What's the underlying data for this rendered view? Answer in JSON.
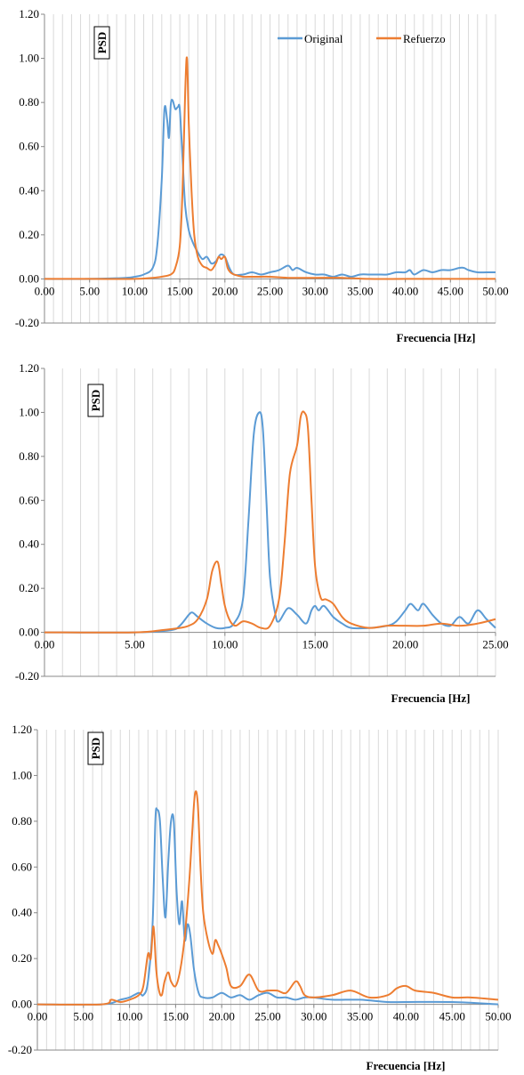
{
  "colors": {
    "original": "#5B9BD5",
    "refuerzo": "#ED7D31",
    "grid": "#d9d9d9",
    "axis": "#888888"
  },
  "legend": {
    "original": "Original",
    "refuerzo": "Refuerzo"
  },
  "chart_data": [
    {
      "type": "line",
      "ylabel": "PSD",
      "xlabel": "Frecuencia [Hz]",
      "xlim": [
        0,
        50
      ],
      "ylim": [
        -0.2,
        1.2
      ],
      "x_ticks": [
        "0.00",
        "5.00",
        "10.00",
        "15.00",
        "20.00",
        "25.00",
        "30.00",
        "35.00",
        "40.00",
        "45.00",
        "50.00"
      ],
      "y_ticks": [
        "1.20",
        "1.00",
        "0.80",
        "0.60",
        "0.40",
        "0.20",
        "0.00",
        "-0.20"
      ],
      "grid": true,
      "legend_position": "top-right",
      "series": [
        {
          "name": "Original",
          "x": [
            0,
            5,
            9,
            10,
            11,
            12,
            12.5,
            13,
            13.3,
            13.6,
            13.8,
            14,
            14.2,
            14.5,
            14.8,
            15,
            15.3,
            15.6,
            16,
            16.5,
            17,
            17.5,
            18,
            18.5,
            19,
            19.5,
            20,
            20.5,
            21,
            22,
            23,
            24,
            25,
            26,
            27,
            27.5,
            28,
            29,
            30,
            31,
            32,
            33,
            34,
            35,
            36,
            37,
            38,
            39,
            40,
            40.5,
            41,
            42,
            43,
            44,
            45,
            46,
            46.5,
            47,
            48,
            49,
            50
          ],
          "y": [
            0.0,
            0.0,
            0.005,
            0.01,
            0.02,
            0.05,
            0.15,
            0.45,
            0.77,
            0.72,
            0.64,
            0.79,
            0.81,
            0.77,
            0.78,
            0.77,
            0.55,
            0.33,
            0.22,
            0.16,
            0.12,
            0.09,
            0.1,
            0.07,
            0.08,
            0.11,
            0.1,
            0.05,
            0.02,
            0.02,
            0.03,
            0.02,
            0.03,
            0.04,
            0.06,
            0.04,
            0.05,
            0.03,
            0.02,
            0.02,
            0.01,
            0.02,
            0.01,
            0.02,
            0.02,
            0.02,
            0.02,
            0.03,
            0.03,
            0.04,
            0.02,
            0.04,
            0.03,
            0.04,
            0.04,
            0.05,
            0.05,
            0.04,
            0.03,
            0.03,
            0.03
          ]
        },
        {
          "name": "Refuerzo",
          "x": [
            0,
            5,
            10,
            12,
            13,
            14,
            14.5,
            15,
            15.3,
            15.6,
            15.8,
            16,
            16.3,
            16.6,
            17,
            17.5,
            18,
            18.5,
            19,
            19.3,
            19.6,
            20,
            20.3,
            20.6,
            21,
            22,
            23,
            24,
            25,
            27,
            30,
            33,
            36,
            40,
            45,
            50
          ],
          "y": [
            0.0,
            0.0,
            0.0,
            0.005,
            0.01,
            0.02,
            0.05,
            0.15,
            0.4,
            0.85,
            1.0,
            0.7,
            0.4,
            0.2,
            0.1,
            0.06,
            0.05,
            0.04,
            0.07,
            0.1,
            0.09,
            0.1,
            0.05,
            0.03,
            0.02,
            0.01,
            0.01,
            0.01,
            0.01,
            0.005,
            0.005,
            0.005,
            0.0,
            0.0,
            0.0,
            0.0
          ]
        }
      ]
    },
    {
      "type": "line",
      "ylabel": "PSD",
      "xlabel": "Frecuencia [Hz]",
      "xlim": [
        0,
        25
      ],
      "ylim": [
        -0.2,
        1.2
      ],
      "x_ticks": [
        "0.00",
        "5.00",
        "10.00",
        "15.00",
        "20.00",
        "25.00"
      ],
      "y_ticks": [
        "1.20",
        "1.00",
        "0.80",
        "0.60",
        "0.40",
        "0.20",
        "0.00",
        "-0.20"
      ],
      "grid": true,
      "series": [
        {
          "name": "Original",
          "x": [
            0,
            5,
            7,
            7.5,
            8,
            8.2,
            8.5,
            9,
            9.5,
            10,
            10.5,
            11,
            11.3,
            11.6,
            11.9,
            12.1,
            12.3,
            12.5,
            12.8,
            13,
            13.5,
            14,
            14.5,
            14.8,
            15,
            15.2,
            15.5,
            16,
            16.5,
            17,
            18,
            19,
            19.5,
            20,
            20.3,
            20.7,
            21,
            21.5,
            22,
            22.5,
            23,
            23.5,
            24,
            24.5,
            25
          ],
          "y": [
            0.0,
            0.0,
            0.01,
            0.03,
            0.08,
            0.09,
            0.07,
            0.04,
            0.02,
            0.02,
            0.04,
            0.15,
            0.5,
            0.9,
            1.0,
            0.93,
            0.6,
            0.25,
            0.08,
            0.05,
            0.11,
            0.08,
            0.04,
            0.1,
            0.12,
            0.1,
            0.12,
            0.07,
            0.04,
            0.02,
            0.02,
            0.03,
            0.05,
            0.1,
            0.13,
            0.1,
            0.13,
            0.08,
            0.04,
            0.03,
            0.07,
            0.04,
            0.1,
            0.06,
            0.02
          ]
        },
        {
          "name": "Refuerzo",
          "x": [
            0,
            5,
            6.5,
            7.5,
            8,
            8.5,
            9,
            9.3,
            9.6,
            9.8,
            10,
            10.3,
            10.6,
            11,
            11.5,
            12,
            12.5,
            13,
            13.3,
            13.6,
            14,
            14.2,
            14.4,
            14.6,
            14.8,
            15,
            15.3,
            15.6,
            16,
            16.5,
            17,
            18,
            19,
            20,
            21,
            22,
            23,
            24,
            25
          ],
          "y": [
            0.0,
            0.0,
            0.01,
            0.02,
            0.03,
            0.06,
            0.15,
            0.28,
            0.32,
            0.22,
            0.12,
            0.05,
            0.03,
            0.05,
            0.04,
            0.02,
            0.03,
            0.15,
            0.4,
            0.72,
            0.85,
            0.98,
            1.0,
            0.93,
            0.6,
            0.3,
            0.16,
            0.15,
            0.13,
            0.07,
            0.04,
            0.02,
            0.03,
            0.03,
            0.03,
            0.04,
            0.03,
            0.04,
            0.06
          ]
        }
      ]
    },
    {
      "type": "line",
      "ylabel": "PSD",
      "xlabel": "Frecuencia [Hz]",
      "xlim": [
        0,
        50
      ],
      "ylim": [
        -0.2,
        1.2
      ],
      "x_ticks": [
        "0.00",
        "5.00",
        "10.00",
        "15.00",
        "20.00",
        "25.00",
        "30.00",
        "35.00",
        "40.00",
        "45.00",
        "50.00"
      ],
      "y_ticks": [
        "1.20",
        "1.00",
        "0.80",
        "0.60",
        "0.40",
        "0.20",
        "0.00",
        "-0.20"
      ],
      "grid": true,
      "series": [
        {
          "name": "Original",
          "x": [
            0,
            7,
            9,
            10,
            11,
            11.5,
            12,
            12.5,
            12.8,
            13,
            13.3,
            13.6,
            13.9,
            14.2,
            14.5,
            14.8,
            15.1,
            15.4,
            15.7,
            16,
            16.3,
            16.6,
            17,
            17.5,
            18,
            19,
            20,
            21,
            22,
            23,
            24,
            25,
            26,
            27,
            28,
            29,
            30,
            32,
            35,
            38,
            40,
            45,
            50
          ],
          "y": [
            0.0,
            0.0,
            0.02,
            0.03,
            0.05,
            0.04,
            0.1,
            0.35,
            0.8,
            0.85,
            0.8,
            0.55,
            0.38,
            0.62,
            0.8,
            0.8,
            0.5,
            0.35,
            0.45,
            0.28,
            0.35,
            0.3,
            0.15,
            0.05,
            0.03,
            0.03,
            0.05,
            0.03,
            0.04,
            0.02,
            0.04,
            0.05,
            0.03,
            0.03,
            0.02,
            0.03,
            0.03,
            0.02,
            0.02,
            0.01,
            0.01,
            0.01,
            0.0
          ]
        },
        {
          "name": "Refuerzo",
          "x": [
            0,
            7,
            8,
            9,
            10,
            11,
            11.5,
            12,
            12.3,
            12.6,
            12.9,
            13.2,
            13.5,
            13.8,
            14.2,
            14.5,
            15,
            15.5,
            16,
            16.5,
            16.8,
            17.1,
            17.4,
            17.7,
            18,
            18.5,
            19,
            19.3,
            19.6,
            20,
            20.5,
            21,
            22,
            23,
            24,
            25,
            26,
            27,
            28,
            28.5,
            29,
            30,
            32,
            34,
            36,
            38,
            39,
            40,
            41,
            43,
            45,
            47,
            50
          ],
          "y": [
            0.0,
            0.0,
            0.02,
            0.01,
            0.02,
            0.04,
            0.08,
            0.22,
            0.2,
            0.34,
            0.15,
            0.06,
            0.04,
            0.1,
            0.14,
            0.1,
            0.08,
            0.15,
            0.3,
            0.55,
            0.75,
            0.92,
            0.88,
            0.6,
            0.4,
            0.28,
            0.22,
            0.28,
            0.26,
            0.22,
            0.16,
            0.08,
            0.08,
            0.13,
            0.06,
            0.06,
            0.06,
            0.05,
            0.1,
            0.08,
            0.04,
            0.03,
            0.04,
            0.06,
            0.03,
            0.04,
            0.07,
            0.08,
            0.06,
            0.05,
            0.03,
            0.03,
            0.02
          ]
        }
      ]
    }
  ]
}
